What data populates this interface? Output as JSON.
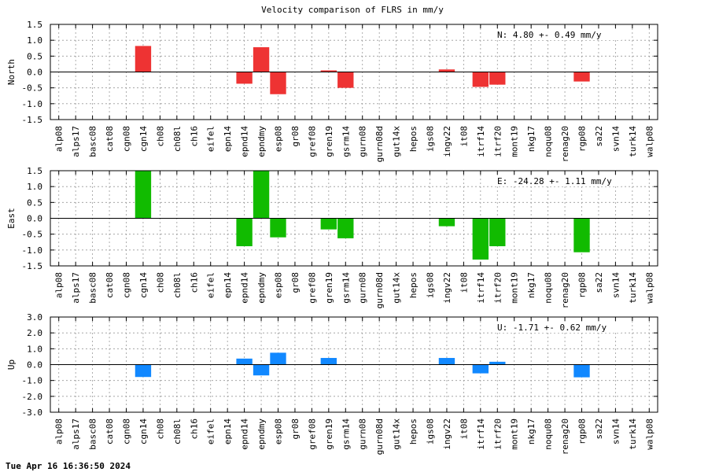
{
  "footer": {
    "timestamp": "Tue Apr 16 16:36:50 2024"
  },
  "chart_data": {
    "type": "bar",
    "title": "Velocity comparison of FLRS in mm/y",
    "categories": [
      "alp08",
      "alps17",
      "basc08",
      "cat08",
      "cgn08",
      "cgn14",
      "ch08",
      "ch08l",
      "ch16",
      "eifel",
      "epn14",
      "epnd14",
      "epndmy",
      "esp08",
      "gr08",
      "gref08",
      "gren19",
      "gsrm14",
      "gurn08",
      "gurn08d",
      "gut14x",
      "hepos",
      "igs08",
      "ingv22",
      "it08",
      "itrf14",
      "itrf20",
      "mont19",
      "nkg17",
      "noqu08",
      "renag20",
      "rgp08",
      "sa22",
      "svn14",
      "turk14",
      "walp08"
    ],
    "panels": [
      {
        "ylabel": "North",
        "ylim": [
          -1.5,
          1.5
        ],
        "yticks": [
          "1.5",
          "1.0",
          "0.5",
          "0.0",
          "-0.5",
          "-1.0",
          "-1.5"
        ],
        "color": "#ee3333",
        "annotation": "N:   4.80 +-  0.49 mm/y",
        "values": [
          null,
          null,
          null,
          null,
          null,
          0.82,
          null,
          null,
          null,
          null,
          null,
          -0.37,
          0.78,
          -0.7,
          null,
          null,
          0.05,
          -0.5,
          null,
          null,
          null,
          null,
          null,
          0.08,
          null,
          -0.47,
          -0.4,
          null,
          null,
          null,
          null,
          -0.3,
          null,
          null,
          null,
          null
        ]
      },
      {
        "ylabel": "East",
        "ylim": [
          -1.5,
          1.5
        ],
        "yticks": [
          "1.5",
          "1.0",
          "0.5",
          "0.0",
          "-0.5",
          "-1.0",
          "-1.5"
        ],
        "color": "#11bb00",
        "annotation": "E: -24.28 +-  1.11 mm/y",
        "values": [
          null,
          null,
          null,
          null,
          null,
          1.5,
          null,
          null,
          null,
          null,
          null,
          -0.88,
          1.5,
          -0.6,
          null,
          null,
          -0.35,
          -0.63,
          null,
          null,
          null,
          null,
          null,
          -0.25,
          null,
          -1.3,
          -0.88,
          null,
          null,
          null,
          null,
          -1.07,
          null,
          null,
          null,
          null
        ]
      },
      {
        "ylabel": "Up",
        "ylim": [
          -3.0,
          3.0
        ],
        "yticks": [
          "3.0",
          "2.0",
          "1.0",
          "0.0",
          "-1.0",
          "-2.0",
          "-3.0"
        ],
        "color": "#1188ff",
        "annotation": "U:  -1.71 +-  0.62 mm/y",
        "values": [
          null,
          null,
          null,
          null,
          null,
          -0.78,
          null,
          null,
          null,
          null,
          null,
          0.38,
          -0.68,
          0.75,
          null,
          null,
          0.42,
          null,
          null,
          null,
          null,
          null,
          null,
          0.42,
          null,
          -0.55,
          0.18,
          null,
          null,
          null,
          null,
          -0.8,
          null,
          null,
          null,
          null
        ]
      }
    ]
  }
}
